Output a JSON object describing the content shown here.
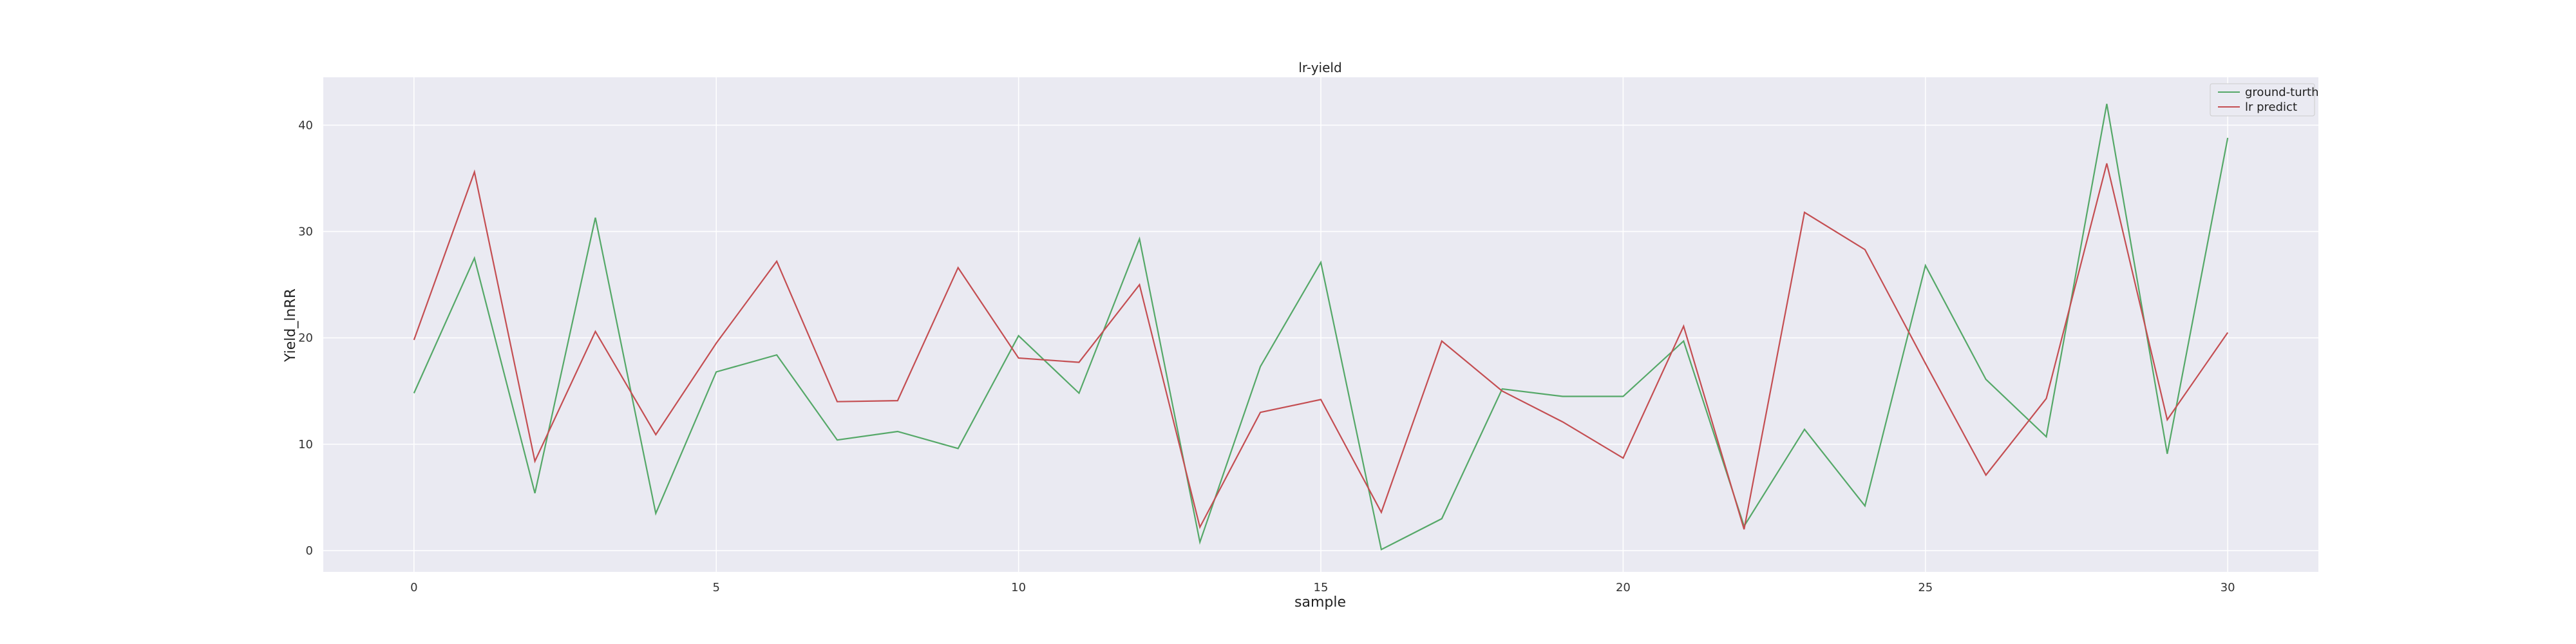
{
  "chart_data": {
    "type": "line",
    "title": "lr-yield",
    "xlabel": "sample",
    "ylabel": "Yield_lnRR",
    "xlim": [
      -1.5,
      31.5
    ],
    "ylim": [
      -2,
      44.5
    ],
    "x_ticks": [
      0,
      5,
      10,
      15,
      20,
      25,
      30
    ],
    "y_ticks": [
      0,
      10,
      20,
      30,
      40
    ],
    "grid": true,
    "legend_position": "top-right",
    "x": [
      0,
      1,
      2,
      3,
      4,
      5,
      6,
      7,
      8,
      9,
      10,
      11,
      12,
      13,
      14,
      15,
      16,
      17,
      18,
      19,
      20,
      21,
      22,
      23,
      24,
      25,
      26,
      27,
      28,
      29,
      30
    ],
    "series": [
      {
        "name": "ground-turth",
        "color": "#55a868",
        "values": [
          14.8,
          27.5,
          5.4,
          31.3,
          3.5,
          16.8,
          18.4,
          10.4,
          11.2,
          9.6,
          20.2,
          14.8,
          29.3,
          0.8,
          17.3,
          27.1,
          0.1,
          3.0,
          15.2,
          14.5,
          14.5,
          19.7,
          2.3,
          11.4,
          4.2,
          26.8,
          16.1,
          10.7,
          42.0,
          9.1,
          38.8
        ]
      },
      {
        "name": "lr predict",
        "color": "#c44e52",
        "values": [
          19.8,
          35.6,
          8.4,
          20.6,
          10.9,
          19.5,
          27.2,
          14.0,
          14.1,
          26.6,
          18.1,
          17.7,
          25.0,
          2.2,
          13.0,
          14.2,
          3.6,
          19.7,
          15.0,
          12.1,
          8.7,
          21.1,
          2.0,
          31.8,
          28.3,
          17.6,
          7.1,
          14.3,
          36.4,
          12.3,
          20.5
        ]
      }
    ]
  }
}
